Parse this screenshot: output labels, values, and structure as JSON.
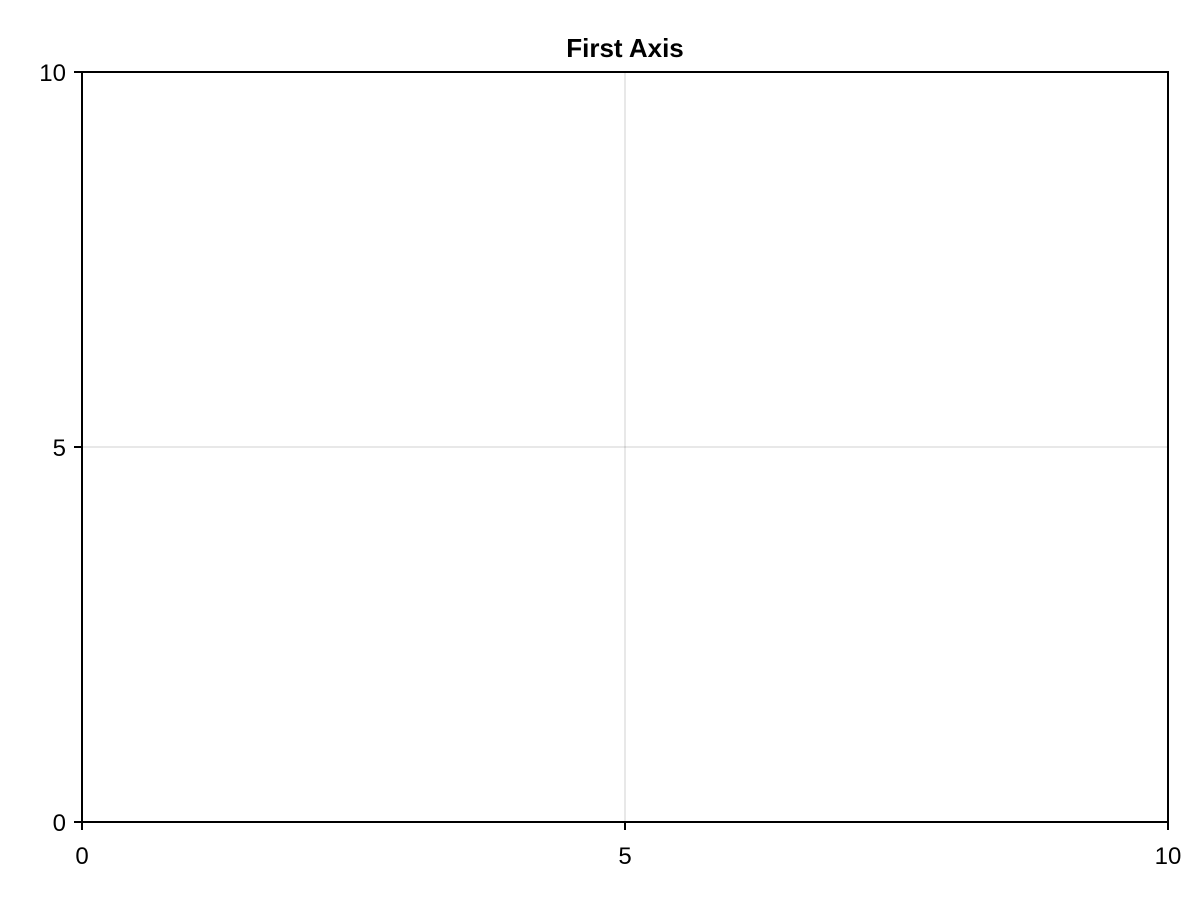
{
  "chart_data": {
    "type": "scatter",
    "title": "First Axis",
    "xlabel": "",
    "ylabel": "",
    "xlim": [
      0,
      10
    ],
    "ylim": [
      0,
      10
    ],
    "xticks": [
      0,
      5,
      10
    ],
    "yticks": [
      0,
      5,
      10
    ],
    "xtick_labels": [
      "0",
      "5",
      "10"
    ],
    "ytick_labels": [
      "0",
      "5",
      "10"
    ],
    "grid": true,
    "series": [],
    "colors": {
      "axis": "#000000",
      "grid": "#e3e3e3",
      "background": "#ffffff"
    }
  }
}
